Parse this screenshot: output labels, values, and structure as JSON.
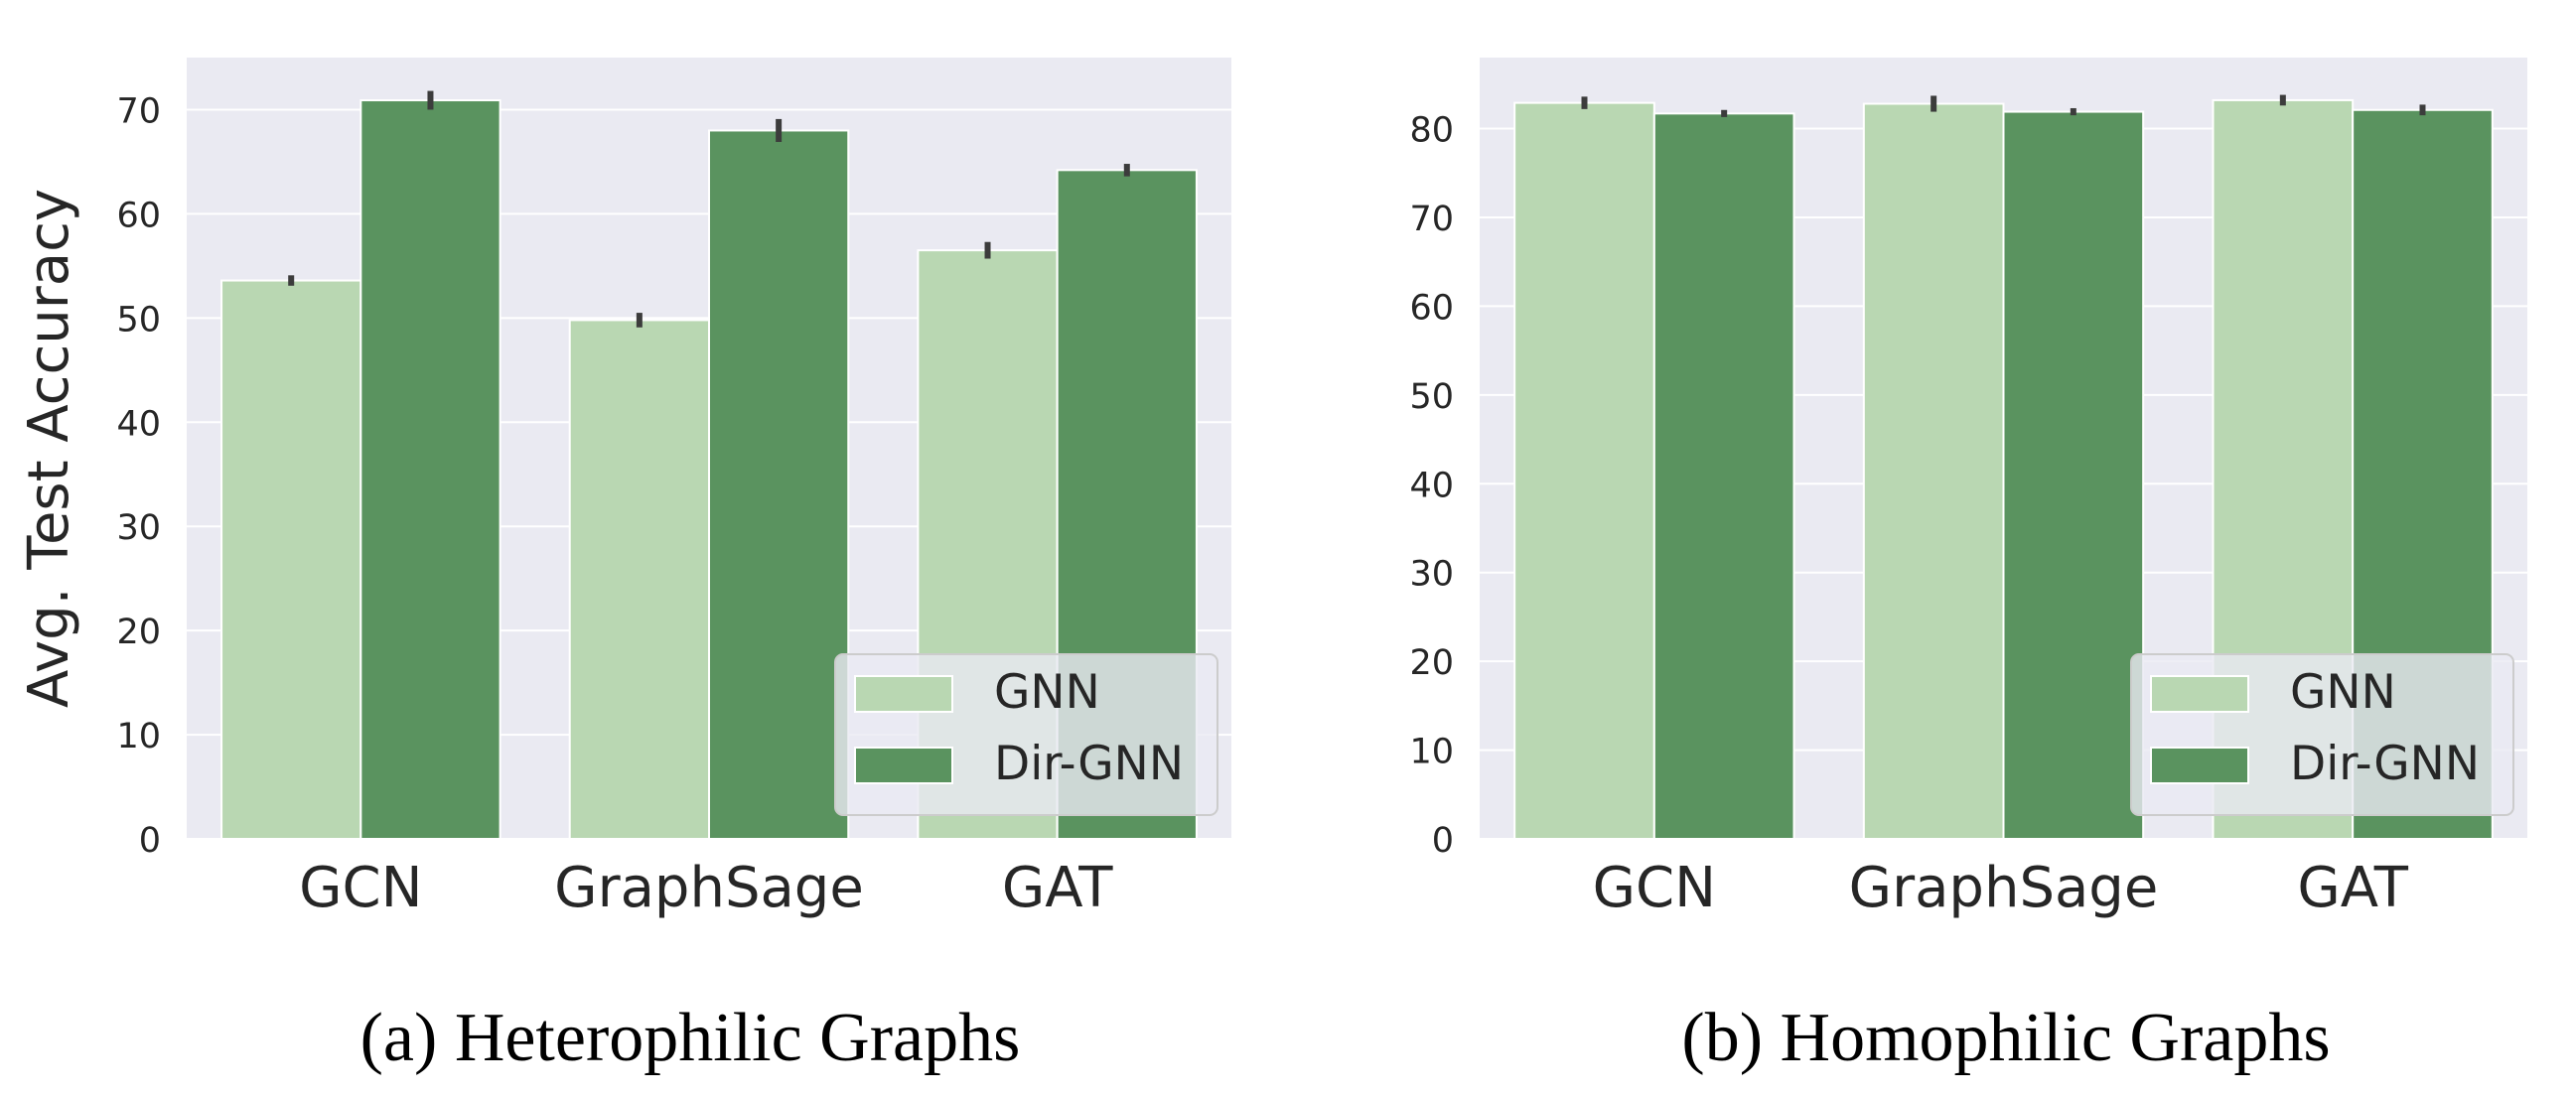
{
  "chart_data": [
    {
      "type": "bar",
      "caption": "(a) Heterophilic Graphs",
      "ylabel": "Avg. Test Accuracy",
      "xlabel": "",
      "categories": [
        "GCN",
        "GraphSage",
        "GAT"
      ],
      "series": [
        {
          "name": "GNN",
          "values": [
            53.6,
            49.8,
            56.5
          ],
          "err": [
            0.5,
            0.7,
            0.8
          ],
          "color": "#b9d7b2"
        },
        {
          "name": "Dir-GNN",
          "values": [
            70.9,
            68.0,
            64.2
          ],
          "err": [
            0.9,
            1.1,
            0.6
          ],
          "color": "#5a935f"
        }
      ],
      "ylim": [
        0,
        75
      ],
      "yticks": [
        0,
        10,
        20,
        30,
        40,
        50,
        60,
        70
      ],
      "grid": true,
      "legend": "bottom-right"
    },
    {
      "type": "bar",
      "caption": "(b) Homophilic Graphs",
      "ylabel": "",
      "xlabel": "",
      "categories": [
        "GCN",
        "GraphSage",
        "GAT"
      ],
      "series": [
        {
          "name": "GNN",
          "values": [
            82.9,
            82.8,
            83.2
          ],
          "err": [
            0.7,
            0.9,
            0.6
          ],
          "color": "#b9d7b2"
        },
        {
          "name": "Dir-GNN",
          "values": [
            81.7,
            81.9,
            82.1
          ],
          "err": [
            0.4,
            0.4,
            0.6
          ],
          "color": "#5a935f"
        }
      ],
      "ylim": [
        0,
        88
      ],
      "yticks": [
        0,
        10,
        20,
        30,
        40,
        50,
        60,
        70,
        80
      ],
      "grid": true,
      "legend": "bottom-right"
    }
  ]
}
